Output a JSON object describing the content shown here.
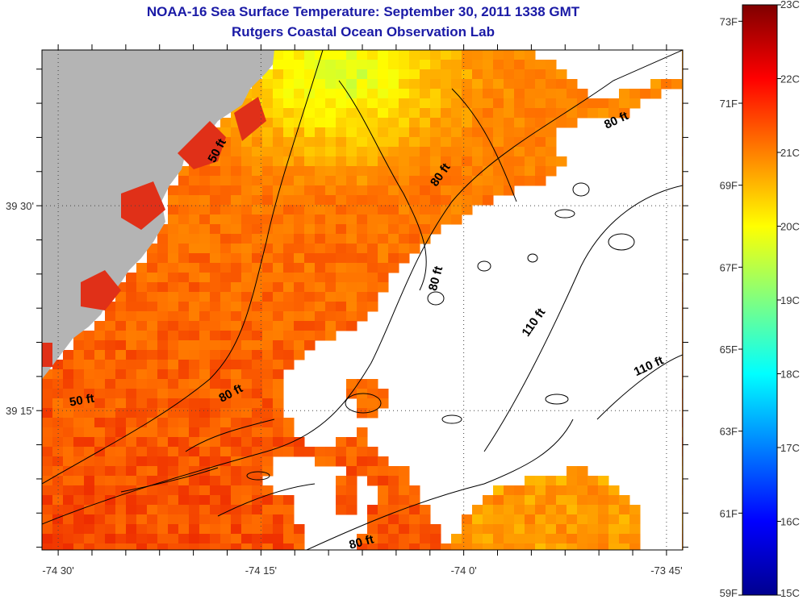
{
  "chart_data": {
    "type": "heatmap",
    "title": "NOAA-16 Sea Surface Temperature:  September 30, 2011 1338 GMT",
    "subtitle": "Rutgers Coastal Ocean Observation Lab",
    "x_ticks": [
      {
        "value": -74.5,
        "label": "-74 30'"
      },
      {
        "value": -74.25,
        "label": "-74 15'"
      },
      {
        "value": -74.0,
        "label": "-74 0'"
      },
      {
        "value": -73.75,
        "label": "-73 45'"
      }
    ],
    "y_ticks": [
      {
        "value": 39.5,
        "label": "39 30'"
      },
      {
        "value": 39.25,
        "label": "39 15'"
      }
    ],
    "xlim": [
      -74.52,
      -73.73
    ],
    "ylim": [
      39.08,
      39.69
    ],
    "grid": true,
    "colorbar": {
      "celsius_range": [
        15,
        23
      ],
      "celsius_labels": [
        "23C",
        "22C",
        "21C",
        "20C",
        "19C",
        "18C",
        "17C",
        "16C",
        "15C"
      ],
      "fahrenheit_labels": [
        "73F",
        "71F",
        "69F",
        "67F",
        "65F",
        "63F",
        "61F",
        "59F"
      ],
      "colors": [
        "#00008f",
        "#0000ff",
        "#0080ff",
        "#00ffff",
        "#80ff80",
        "#ffff00",
        "#ff8000",
        "#ff0000",
        "#800000"
      ]
    },
    "land_color": "#b4b4b4",
    "no_data_color": "#ffffff",
    "contour_labels": [
      {
        "text": "50 ft",
        "lon": -74.3,
        "lat": 39.565,
        "angle": -62
      },
      {
        "text": "80 ft",
        "lon": -74.025,
        "lat": 39.535,
        "angle": -55
      },
      {
        "text": "80 ft",
        "lon": -73.81,
        "lat": 39.6,
        "angle": -25
      },
      {
        "text": "80 ft",
        "lon": -74.03,
        "lat": 39.41,
        "angle": -75
      },
      {
        "text": "110 ft",
        "lon": -73.91,
        "lat": 39.355,
        "angle": -55
      },
      {
        "text": "110 ft",
        "lon": -73.77,
        "lat": 39.3,
        "angle": -25
      },
      {
        "text": "80 ft",
        "lon": -74.285,
        "lat": 39.267,
        "angle": -28
      },
      {
        "text": "50 ft",
        "lon": -74.47,
        "lat": 39.258,
        "angle": -10
      },
      {
        "text": "80 ft",
        "lon": -74.125,
        "lat": 39.085,
        "angle": -15
      }
    ]
  }
}
